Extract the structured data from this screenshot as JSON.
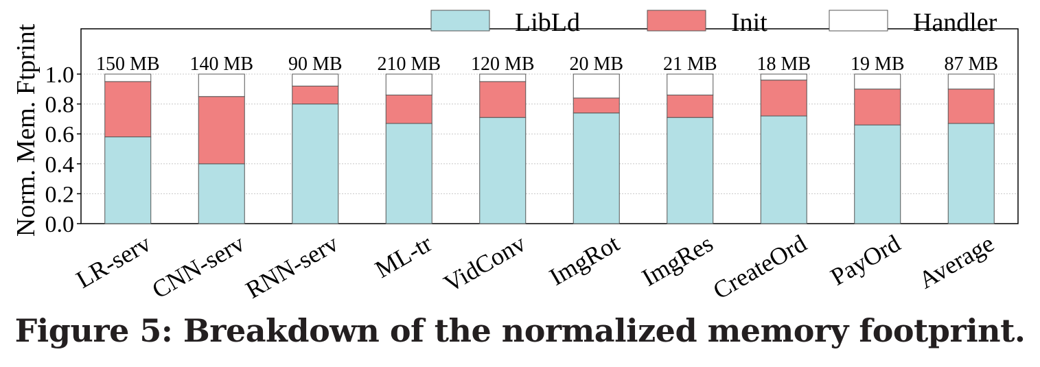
{
  "chart_data": {
    "type": "bar",
    "stacked": true,
    "categories": [
      "LR-serv",
      "CNN-serv",
      "RNN-serv",
      "ML-tr",
      "VidConv",
      "ImgRot",
      "ImgRes",
      "CreateOrd",
      "PayOrd",
      "Average"
    ],
    "series": [
      {
        "name": "LibLd",
        "color": "#b3e0e5",
        "values": [
          0.58,
          0.4,
          0.8,
          0.67,
          0.71,
          0.74,
          0.71,
          0.72,
          0.66,
          0.67
        ]
      },
      {
        "name": "Init",
        "color": "#f08080",
        "values": [
          0.37,
          0.45,
          0.12,
          0.19,
          0.24,
          0.1,
          0.15,
          0.24,
          0.24,
          0.23
        ]
      },
      {
        "name": "Handler",
        "color": "#ffffff",
        "values": [
          0.05,
          0.15,
          0.08,
          0.14,
          0.05,
          0.16,
          0.14,
          0.04,
          0.1,
          0.1
        ]
      }
    ],
    "totals": [
      "150 MB",
      "140 MB",
      "90 MB",
      "210 MB",
      "120 MB",
      "20 MB",
      "21 MB",
      "18 MB",
      "19 MB",
      "87 MB"
    ],
    "ylabel": "Norm. Mem. Ftprint",
    "xlabel": "",
    "ylim": [
      0,
      1.0
    ],
    "yticks": [
      "0.0",
      "0.2",
      "0.4",
      "0.6",
      "0.8",
      "1.0"
    ],
    "grid": true,
    "legend_position": "top-right"
  },
  "caption": "Figure 5: Breakdown of the normalized memory footprint."
}
